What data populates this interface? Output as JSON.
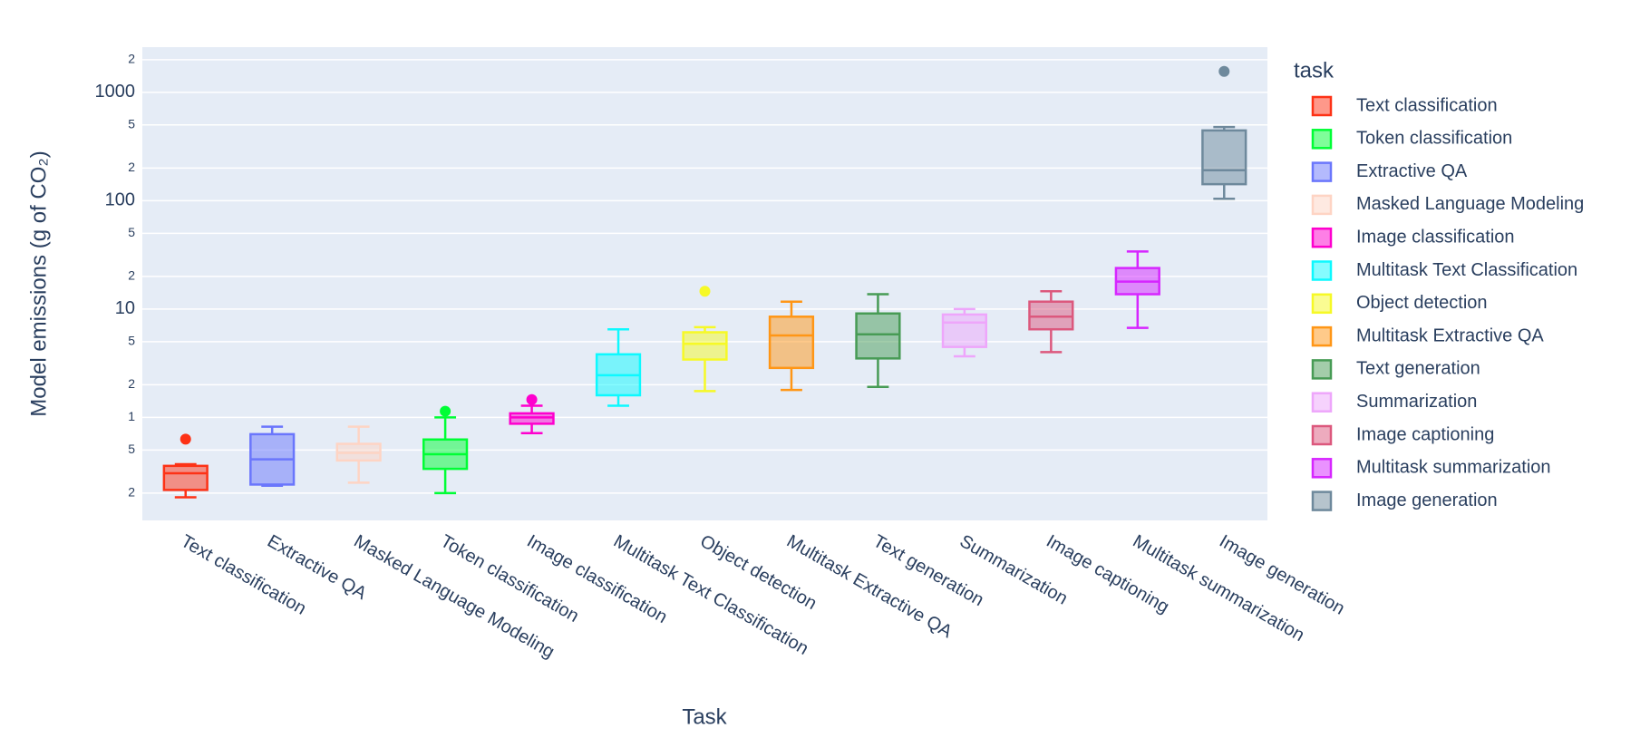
{
  "chart_data": {
    "type": "box",
    "x_label": "Task",
    "y_label": "Model emissions (g of CO₂)",
    "legend_title": "task",
    "log_y": true,
    "grid": true,
    "ylim": [
      0.112,
      2612
    ],
    "yticks": [
      {
        "value": 0.2,
        "label": "2"
      },
      {
        "value": 0.5,
        "label": "5"
      },
      1,
      {
        "value": 2,
        "label": "2"
      },
      {
        "value": 5,
        "label": "5"
      },
      10,
      {
        "value": 20,
        "label": "2"
      },
      {
        "value": 50,
        "label": "5"
      },
      100,
      {
        "value": 200,
        "label": "2"
      },
      {
        "value": 500,
        "label": "5"
      },
      1000,
      {
        "value": 2000,
        "label": "2"
      }
    ],
    "categories": [
      "Text classification",
      "Extractive QA",
      "Masked Language Modeling",
      "Token classification",
      "Image classification",
      "Multitask Text Classification",
      "Object detection",
      "Multitask Extractive QA",
      "Text generation",
      "Summarization",
      "Image captioning",
      "Multitask summarization",
      "Image generation"
    ],
    "series": [
      {
        "name": "Text classification",
        "color": "#FD3216",
        "min": 0.183,
        "q1": 0.214,
        "median": 0.305,
        "q3": 0.357,
        "max": 0.37,
        "outliers": [
          0.63
        ]
      },
      {
        "name": "Token classification",
        "color": "#00FE35",
        "min": 0.2,
        "q1": 0.335,
        "median": 0.457,
        "q3": 0.625,
        "max": 1.0,
        "outliers": [
          1.14
        ]
      },
      {
        "name": "Extractive QA",
        "color": "#6A76FC",
        "min": 0.234,
        "q1": 0.24,
        "median": 0.41,
        "q3": 0.7,
        "max": 0.82,
        "outliers": []
      },
      {
        "name": "Masked Language Modeling",
        "color": "#FED4C4",
        "min": 0.25,
        "q1": 0.4,
        "median": 0.47,
        "q3": 0.57,
        "max": 0.82,
        "outliers": []
      },
      {
        "name": "Image classification",
        "color": "#FE00CE",
        "min": 0.715,
        "q1": 0.874,
        "median": 1.0,
        "q3": 1.09,
        "max": 1.28,
        "outliers": [
          1.46
        ]
      },
      {
        "name": "Multitask Text Classification",
        "color": "#0DF9FF",
        "min": 1.28,
        "q1": 1.6,
        "median": 2.45,
        "q3": 3.82,
        "max": 6.5,
        "outliers": []
      },
      {
        "name": "Object detection",
        "color": "#F6F926",
        "min": 1.75,
        "q1": 3.42,
        "median": 4.77,
        "q3": 6.1,
        "max": 6.8,
        "outliers": [
          14.6
        ]
      },
      {
        "name": "Multitask Extractive QA",
        "color": "#FF9616",
        "min": 1.79,
        "q1": 2.86,
        "median": 5.7,
        "q3": 8.5,
        "max": 11.7,
        "outliers": []
      },
      {
        "name": "Text generation",
        "color": "#479B55",
        "min": 1.91,
        "q1": 3.5,
        "median": 5.84,
        "q3": 9.1,
        "max": 13.7,
        "outliers": []
      },
      {
        "name": "Summarization",
        "color": "#EEA6FB",
        "min": 3.66,
        "q1": 4.47,
        "median": 7.5,
        "q3": 8.9,
        "max": 10,
        "outliers": []
      },
      {
        "name": "Image captioning",
        "color": "#DC587D",
        "min": 4.0,
        "q1": 6.5,
        "median": 8.5,
        "q3": 11.7,
        "max": 14.6,
        "outliers": []
      },
      {
        "name": "Multitask summarization",
        "color": "#D626FF",
        "min": 6.7,
        "q1": 13.7,
        "median": 17.9,
        "q3": 23.9,
        "max": 34,
        "outliers": []
      },
      {
        "name": "Image generation",
        "color": "#6E899C",
        "min": 104,
        "q1": 142,
        "median": 191,
        "q3": 445,
        "max": 478,
        "outliers": [
          1560
        ]
      }
    ]
  }
}
